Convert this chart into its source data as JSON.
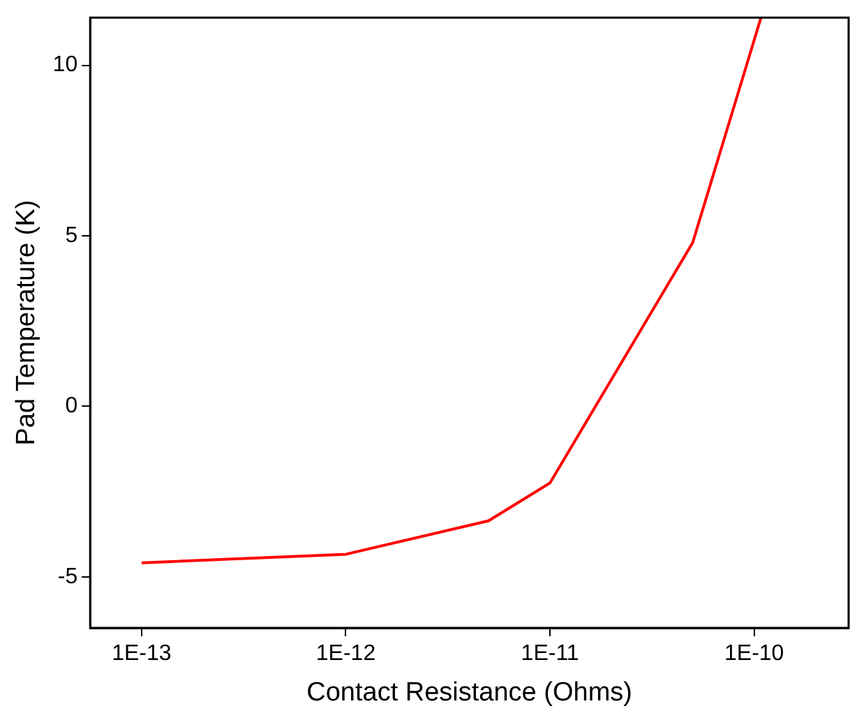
{
  "chart_data": {
    "type": "line",
    "xlabel": "Contact Resistance (Ohms)",
    "ylabel": "Pad Temperature (K)",
    "log": "x",
    "x": [
      1e-13,
      1e-12,
      5e-12,
      1e-11,
      5e-11,
      1.08e-10
    ],
    "series": [
      {
        "color": "#ff0000",
        "values": [
          -4.59,
          -4.34,
          -3.36,
          -2.25,
          4.8,
          11.4
        ]
      }
    ],
    "xlim": [
      5.6e-14,
      2.9e-10
    ],
    "xticks": [
      {
        "value": 1e-13,
        "label": "1E-13"
      },
      {
        "value": 1e-12,
        "label": "1E-12"
      },
      {
        "value": 1e-11,
        "label": "1E-11"
      },
      {
        "value": 1e-10,
        "label": "1E-10"
      }
    ],
    "ylim": [
      -6.5,
      11.4
    ],
    "yticks": [
      -5,
      0,
      5,
      10
    ],
    "grid": false,
    "legend": false,
    "marker": "none",
    "line_style": "solid"
  }
}
